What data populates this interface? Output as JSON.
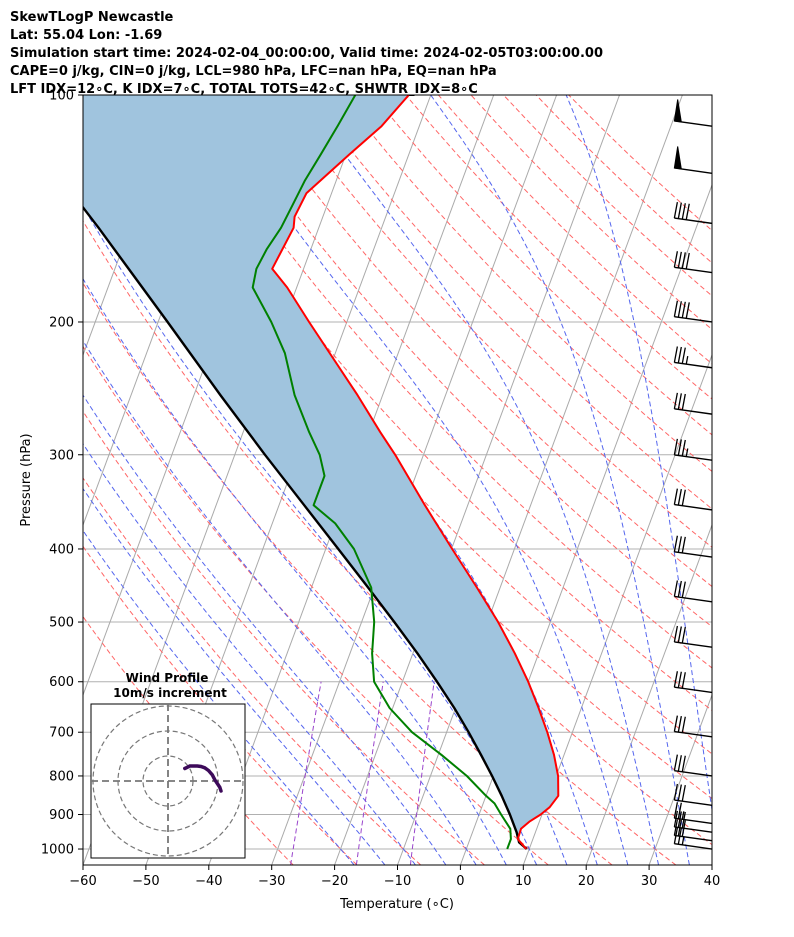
{
  "header": {
    "line1": "SkewTLogP Newcastle",
    "line2": "Lat: 55.04   Lon: -1.69",
    "line3": "Simulation start time: 2024-02-04_00:00:00, Valid time: 2024-02-05T03:00:00.00",
    "line4": "CAPE=0 j/kg, CIN=0 j/kg, LCL=980 hPa, LFC=nan hPa, EQ=nan hPa",
    "line5": "LFT IDX=12∘C, K IDX=7∘C, TOTAL TOTS=42∘C, SHWTR_IDX=8∘C"
  },
  "colors": {
    "temperature": "#ff0000",
    "dewpoint": "#008000",
    "parcel": "#000000",
    "cape_fill": "#a0c4de",
    "dry_adiabat": "#ff6666",
    "moist_adiabat": "#5566ee",
    "mixing_ratio": "#9944cc",
    "isotherm": "#aaaaaa",
    "hodograph": "#3d0a5a"
  },
  "chart_data": {
    "type": "line",
    "title": "SkewTLogP Newcastle",
    "xlabel": "Temperature (∘C)",
    "ylabel": "Pressure (hPa)",
    "xlim": [
      -60,
      40
    ],
    "ylim": [
      1050,
      100
    ],
    "y_scale": "log",
    "x_ticks": [
      "−60",
      "−50",
      "−40",
      "−30",
      "−20",
      "−10",
      "0",
      "10",
      "20",
      "30",
      "40"
    ],
    "x_tick_values": [
      -60,
      -50,
      -40,
      -30,
      -20,
      -10,
      0,
      10,
      20,
      30,
      40
    ],
    "y_ticks": [
      "100",
      "200",
      "300",
      "400",
      "500",
      "600",
      "700",
      "800",
      "900",
      "1000"
    ],
    "y_tick_values": [
      100,
      200,
      300,
      400,
      500,
      600,
      700,
      800,
      900,
      1000
    ],
    "series": [
      {
        "name": "Temperature",
        "pressure": [
          1000,
          970,
          940,
          920,
          900,
          880,
          850,
          800,
          750,
          700,
          650,
          600,
          550,
          500,
          450,
          400,
          350,
          300,
          280,
          250,
          200,
          180,
          170,
          150,
          145,
          135,
          120,
          110,
          100
        ],
        "values": [
          9.5,
          7.6,
          7.5,
          8.4,
          9.8,
          10.8,
          11.5,
          10.3,
          8.4,
          6.0,
          3.2,
          0.0,
          -3.8,
          -8.3,
          -13.7,
          -19.9,
          -26.8,
          -34.5,
          -38.2,
          -44.0,
          -56.0,
          -61.5,
          -65.0,
          -64.0,
          -64.5,
          -64.0,
          -59.5,
          -56.0,
          -53.5
        ]
      },
      {
        "name": "Dewpoint",
        "pressure": [
          1000,
          970,
          940,
          900,
          870,
          850,
          800,
          750,
          700,
          650,
          600,
          550,
          500,
          450,
          400,
          370,
          350,
          320,
          300,
          280,
          250,
          220,
          200,
          180,
          170,
          160,
          150,
          140,
          130,
          120,
          110,
          100
        ],
        "values": [
          6.5,
          6.5,
          5.8,
          3.5,
          1.8,
          0.0,
          -4.2,
          -9.5,
          -15.5,
          -20.5,
          -24.5,
          -26.5,
          -28.0,
          -30.5,
          -35.5,
          -40.0,
          -44.5,
          -44.5,
          -46.5,
          -49.5,
          -54.0,
          -58.0,
          -62.0,
          -67.0,
          -67.5,
          -67.0,
          -66.0,
          -65.5,
          -65.0,
          -64.0,
          -63.0,
          -62.0
        ]
      },
      {
        "name": "Parcel",
        "pressure": [
          1000,
          980,
          950,
          900,
          850,
          800,
          750,
          700,
          650,
          600,
          550,
          500,
          450,
          400,
          350,
          300,
          250,
          200,
          150,
          100
        ],
        "values": [
          9.6,
          8.0,
          7.0,
          4.9,
          2.5,
          -0.2,
          -3.2,
          -6.5,
          -10.2,
          -14.5,
          -19.3,
          -24.8,
          -31.0,
          -38.0,
          -46.0,
          -55.2,
          -65.8,
          -78.5,
          -95.0,
          -119.0
        ]
      }
    ],
    "wind_barbs": [
      {
        "pressure": 1000,
        "speed_kt": 25
      },
      {
        "pressure": 975,
        "speed_kt": 30
      },
      {
        "pressure": 950,
        "speed_kt": 30
      },
      {
        "pressure": 925,
        "speed_kt": 25
      },
      {
        "pressure": 875,
        "speed_kt": 30
      },
      {
        "pressure": 800,
        "speed_kt": 30
      },
      {
        "pressure": 710,
        "speed_kt": 30
      },
      {
        "pressure": 620,
        "speed_kt": 30
      },
      {
        "pressure": 540,
        "speed_kt": 30
      },
      {
        "pressure": 470,
        "speed_kt": 30
      },
      {
        "pressure": 410,
        "speed_kt": 30
      },
      {
        "pressure": 355,
        "speed_kt": 30
      },
      {
        "pressure": 305,
        "speed_kt": 35
      },
      {
        "pressure": 265,
        "speed_kt": 30
      },
      {
        "pressure": 230,
        "speed_kt": 35
      },
      {
        "pressure": 200,
        "speed_kt": 40
      },
      {
        "pressure": 172,
        "speed_kt": 40
      },
      {
        "pressure": 148,
        "speed_kt": 40
      },
      {
        "pressure": 127,
        "speed_kt": 50
      },
      {
        "pressure": 110,
        "speed_kt": 50
      }
    ],
    "hodograph": {
      "title": "Wind Profile",
      "subtitle": "10m/s increment",
      "rings_ms": [
        10,
        20,
        30
      ],
      "u_ms": [
        -19,
        -17,
        -15,
        -12,
        -9,
        -6,
        -3,
        0,
        3,
        5,
        7,
        9,
        10
      ],
      "v_ms": [
        5,
        5.5,
        6,
        6,
        6,
        5.8,
        5.3,
        4.2,
        2.5,
        0.5,
        -1,
        -2.5,
        -4
      ]
    }
  }
}
